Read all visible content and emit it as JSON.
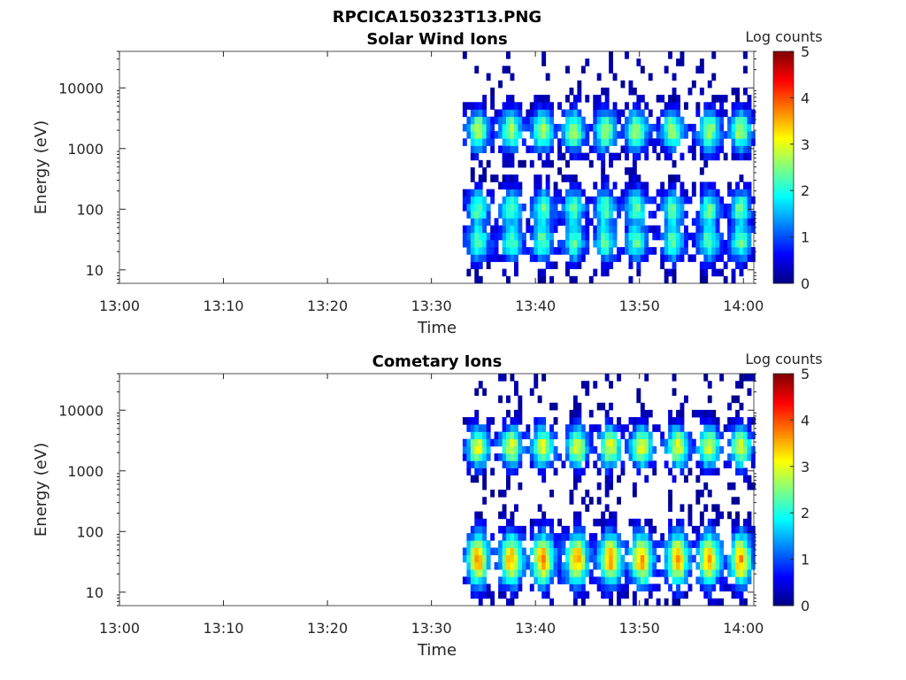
{
  "figure": {
    "filename": "RPCICA150323T13.PNG"
  },
  "chart_data": [
    {
      "type": "heatmap",
      "title": "Solar Wind Ions",
      "xlabel": "Time",
      "ylabel": "Energy (eV)",
      "x_ticks": [
        "13:00",
        "13:10",
        "13:20",
        "13:30",
        "13:40",
        "13:50",
        "14:00"
      ],
      "y_ticks": [
        "10",
        "100",
        "1000",
        "10000"
      ],
      "y_scale": "log",
      "ylim": [
        6,
        40000
      ],
      "xlim": [
        "13:00",
        "14:01"
      ],
      "colorbar": {
        "label": "Log counts",
        "range": [
          0,
          5
        ],
        "ticks": [
          "0",
          "1",
          "2",
          "3",
          "4",
          "5"
        ],
        "colormap": "jet"
      },
      "data_start": "13:33",
      "data_end": "14:01",
      "burst_centers_min": [
        34.3,
        37.5,
        40.5,
        43.5,
        46.5,
        49.5,
        53.0,
        56.5,
        59.5
      ],
      "typical_peak_energy_eV": [
        2000,
        100,
        30
      ],
      "max_log_counts": 2.8
    },
    {
      "type": "heatmap",
      "title": "Cometary Ions",
      "xlabel": "Time",
      "ylabel": "Energy (eV)",
      "x_ticks": [
        "13:00",
        "13:10",
        "13:20",
        "13:30",
        "13:40",
        "13:50",
        "14:00"
      ],
      "y_ticks": [
        "10",
        "100",
        "1000",
        "10000"
      ],
      "y_scale": "log",
      "ylim": [
        6,
        40000
      ],
      "xlim": [
        "13:00",
        "14:01"
      ],
      "colorbar": {
        "label": "Log counts",
        "range": [
          0,
          5
        ],
        "ticks": [
          "0",
          "1",
          "2",
          "3",
          "4",
          "5"
        ],
        "colormap": "jet"
      },
      "data_start": "13:33",
      "data_end": "14:01",
      "burst_centers_min": [
        34.3,
        37.5,
        40.5,
        43.8,
        47.0,
        50.0,
        53.5,
        56.5,
        59.5
      ],
      "typical_peak_energy_eV": [
        35,
        2500
      ],
      "max_log_counts": 3.6
    }
  ]
}
